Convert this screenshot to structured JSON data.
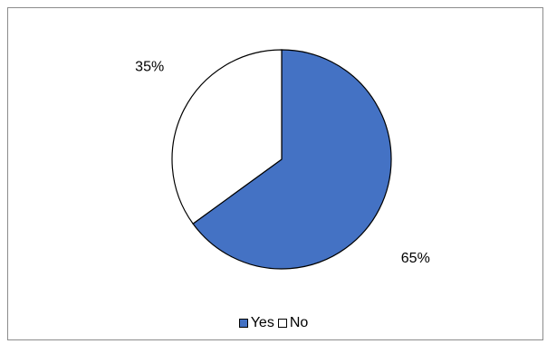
{
  "chart_data": {
    "type": "pie",
    "slices": [
      {
        "name": "Yes",
        "value": 65,
        "label": "65%",
        "color": "#4472C4"
      },
      {
        "name": "No",
        "value": 35,
        "label": "35%",
        "color": "#FFFFFF"
      }
    ],
    "start_angle_deg": 0,
    "direction": "clockwise",
    "legend_position": "bottom",
    "slice_border_color": "#000000"
  }
}
